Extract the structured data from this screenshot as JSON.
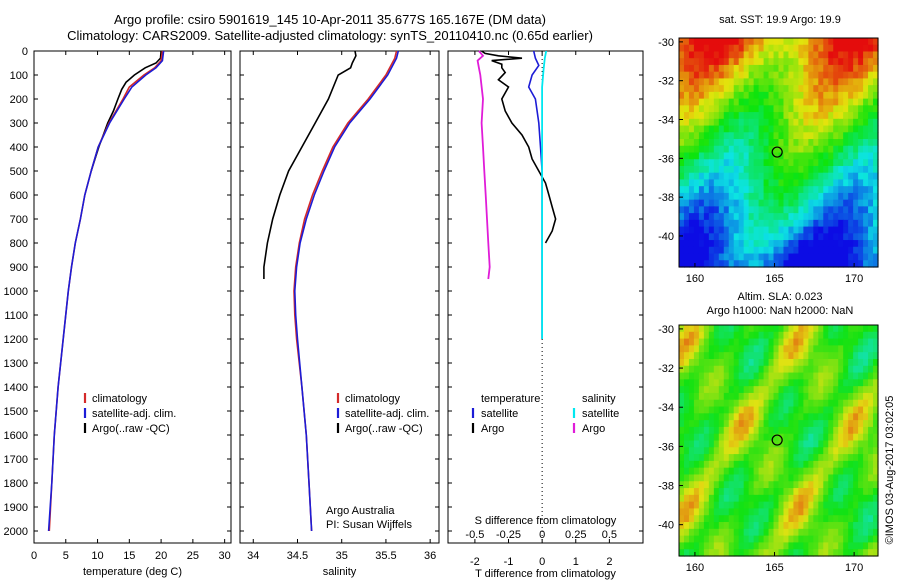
{
  "titles": {
    "line1": "Argo profile: csiro 5901619_145 10-Apr-2011 35.677S 165.167E (DM data)",
    "line2": "Climatology: CARS2009. Satellite-adjusted climatology: synTS_20110410.nc (0.65d earlier)"
  },
  "credits": {
    "org": "Argo Australia",
    "pi": "PI: Susan Wijffels"
  },
  "copyright": "©IMOS 03-Aug-2017 03:02:05",
  "map_titles": {
    "sst": "sat. SST: 19.9 Argo: 19.9",
    "sla1": "Altim. SLA: 0.023",
    "sla2": "Argo h1000: NaN h2000: NaN"
  },
  "colors": {
    "climatology": "#d42a2a",
    "satellite": "#1c1cd6",
    "argo": "#000000",
    "sal_sat": "#00e8f0",
    "sal_argo": "#e01cd8"
  },
  "chart_data": [
    {
      "type": "line",
      "xlabel": "temperature (deg C)",
      "ylabel": "",
      "xlim": [
        0,
        31
      ],
      "ylim": [
        2050,
        0
      ],
      "y_reversed": true,
      "xticks": [
        0,
        5,
        10,
        15,
        20,
        25,
        30
      ],
      "yticks": [
        0,
        100,
        200,
        300,
        400,
        500,
        600,
        700,
        800,
        900,
        1000,
        1100,
        1200,
        1300,
        1400,
        1500,
        1600,
        1700,
        1800,
        1900,
        2000
      ],
      "legend": [
        "climatology",
        "satellite-adj. clim.",
        "Argo(..raw -QC)"
      ],
      "series": [
        {
          "name": "climatology",
          "depth": [
            0,
            40,
            70,
            100,
            150,
            200,
            300,
            400,
            500,
            600,
            700,
            800,
            900,
            1000,
            1200,
            1400,
            1600,
            1800,
            2000
          ],
          "values": [
            20.2,
            20.0,
            19.0,
            17.3,
            15.0,
            14.0,
            11.8,
            10.1,
            9.0,
            8.0,
            7.3,
            6.5,
            5.9,
            5.4,
            4.6,
            3.8,
            3.2,
            2.8,
            2.4
          ]
        },
        {
          "name": "satellite-adj. clim.",
          "depth": [
            0,
            40,
            70,
            100,
            150,
            200,
            300,
            400,
            500,
            600,
            700,
            800,
            900,
            1000,
            1200,
            1400,
            1600,
            1800,
            2000
          ],
          "values": [
            20.4,
            20.2,
            19.2,
            17.6,
            15.4,
            14.2,
            11.9,
            10.1,
            9.0,
            8.0,
            7.3,
            6.5,
            5.9,
            5.4,
            4.6,
            3.8,
            3.2,
            2.8,
            2.3
          ]
        },
        {
          "name": "Argo(..raw -QC)",
          "depth": [
            0,
            30,
            50,
            70,
            100,
            130,
            160,
            200,
            250,
            300,
            350,
            400,
            450,
            500
          ],
          "values": [
            20.0,
            19.9,
            19.2,
            17.5,
            15.8,
            14.5,
            13.8,
            13.2,
            12.5,
            11.6,
            10.9,
            10.2,
            9.6,
            9.0
          ]
        }
      ]
    },
    {
      "type": "line",
      "xlabel": "salinity",
      "ylabel": "",
      "xlim": [
        33.85,
        36.1
      ],
      "ylim": [
        2050,
        0
      ],
      "y_reversed": true,
      "xticks": [
        34,
        34.5,
        35,
        35.5,
        36
      ],
      "legend": [
        "climatology",
        "satellite-adj. clim.",
        "Argo(..raw -QC)"
      ],
      "series": [
        {
          "name": "climatology",
          "depth": [
            0,
            30,
            100,
            200,
            300,
            400,
            500,
            600,
            700,
            800,
            900,
            1000,
            1100,
            1200,
            1400,
            1600,
            1800,
            2000
          ],
          "values": [
            35.62,
            35.6,
            35.5,
            35.3,
            35.07,
            34.9,
            34.78,
            34.67,
            34.58,
            34.52,
            34.48,
            34.46,
            34.47,
            34.49,
            34.55,
            34.6,
            34.63,
            34.66
          ]
        },
        {
          "name": "satellite-adj. clim.",
          "depth": [
            0,
            30,
            100,
            200,
            300,
            400,
            500,
            600,
            700,
            800,
            900,
            1000,
            1100,
            1200,
            1400,
            1600,
            1800,
            2000
          ],
          "values": [
            35.64,
            35.62,
            35.52,
            35.32,
            35.09,
            34.92,
            34.8,
            34.69,
            34.6,
            34.53,
            34.49,
            34.47,
            34.48,
            34.5,
            34.55,
            34.6,
            34.63,
            34.66
          ]
        },
        {
          "name": "Argo(..raw -QC)",
          "depth": [
            0,
            20,
            50,
            70,
            100,
            200,
            300,
            400,
            500,
            600,
            700,
            800,
            900,
            950
          ],
          "values": [
            35.15,
            35.16,
            35.12,
            35.1,
            34.96,
            34.85,
            34.7,
            34.55,
            34.4,
            34.3,
            34.22,
            34.16,
            34.12,
            34.12
          ]
        }
      ]
    },
    {
      "type": "line",
      "xlabel": "T difference from climatology",
      "ylabel": "",
      "secondary_xlabel": "S difference from climatology",
      "xlim": [
        -2.8,
        3.0
      ],
      "ylim": [
        2050,
        0
      ],
      "y_reversed": true,
      "xticks": [
        -2,
        -1,
        0,
        1,
        2
      ],
      "secondary_xticks": [
        -0.5,
        -0.25,
        0,
        0.25,
        0.5
      ],
      "legend_temperature": [
        "temperature",
        "satellite",
        "Argo"
      ],
      "legend_salinity": [
        "salinity",
        "satellite",
        "Argo"
      ],
      "series": [
        {
          "name": "temperature satellite",
          "depth": [
            0,
            30,
            60,
            100,
            150,
            200,
            300,
            400,
            500,
            600,
            800,
            1000,
            1200
          ],
          "values": [
            -0.25,
            -0.2,
            -0.1,
            -0.3,
            -0.4,
            -0.2,
            -0.1,
            -0.05,
            0,
            0,
            0,
            0,
            0
          ]
        },
        {
          "name": "temperature Argo",
          "depth": [
            0,
            10,
            20,
            30,
            40,
            55,
            70,
            90,
            120,
            150,
            200,
            250,
            300,
            350,
            400,
            450,
            500,
            550,
            600,
            650,
            700,
            750,
            800
          ],
          "values": [
            -1.8,
            -1.7,
            -1.3,
            -0.6,
            -1.5,
            -1.2,
            -1.2,
            -1.1,
            -1.3,
            -1.0,
            -1.2,
            -1.1,
            -0.9,
            -0.6,
            -0.4,
            -0.3,
            -0.1,
            0.1,
            0.2,
            0.3,
            0.4,
            0.3,
            0.1
          ]
        },
        {
          "name": "salinity satellite",
          "depth": [
            0,
            30,
            80,
            150,
            300,
            500,
            700,
            1000,
            1200
          ],
          "values": [
            0.03,
            0.02,
            0.01,
            0,
            0,
            0,
            0,
            0,
            0
          ]
        },
        {
          "name": "salinity Argo",
          "depth": [
            0,
            20,
            40,
            70,
            100,
            200,
            300,
            400,
            500,
            600,
            700,
            800,
            900,
            950
          ],
          "values": [
            -0.47,
            -0.44,
            -0.48,
            -0.47,
            -0.46,
            -0.44,
            -0.45,
            -0.44,
            -0.43,
            -0.42,
            -0.41,
            -0.4,
            -0.39,
            -0.4
          ]
        }
      ]
    },
    {
      "type": "heatmap",
      "title": "sat. SST: 19.9 Argo: 19.9",
      "xlim": [
        159,
        171.5
      ],
      "ylim": [
        -41.6,
        -29.8
      ],
      "xticks": [
        160,
        165,
        170
      ],
      "yticks": [
        -30,
        -32,
        -34,
        -36,
        -38,
        -40
      ],
      "marker": {
        "lon": 165.167,
        "lat": -35.677
      }
    },
    {
      "type": "heatmap",
      "title": "Altim. SLA: 0.023",
      "xlim": [
        159,
        171.5
      ],
      "ylim": [
        -41.6,
        -29.8
      ],
      "xticks": [
        160,
        165,
        170
      ],
      "yticks": [
        -30,
        -32,
        -34,
        -36,
        -38,
        -40
      ],
      "marker": {
        "lon": 165.167,
        "lat": -35.677
      }
    }
  ]
}
